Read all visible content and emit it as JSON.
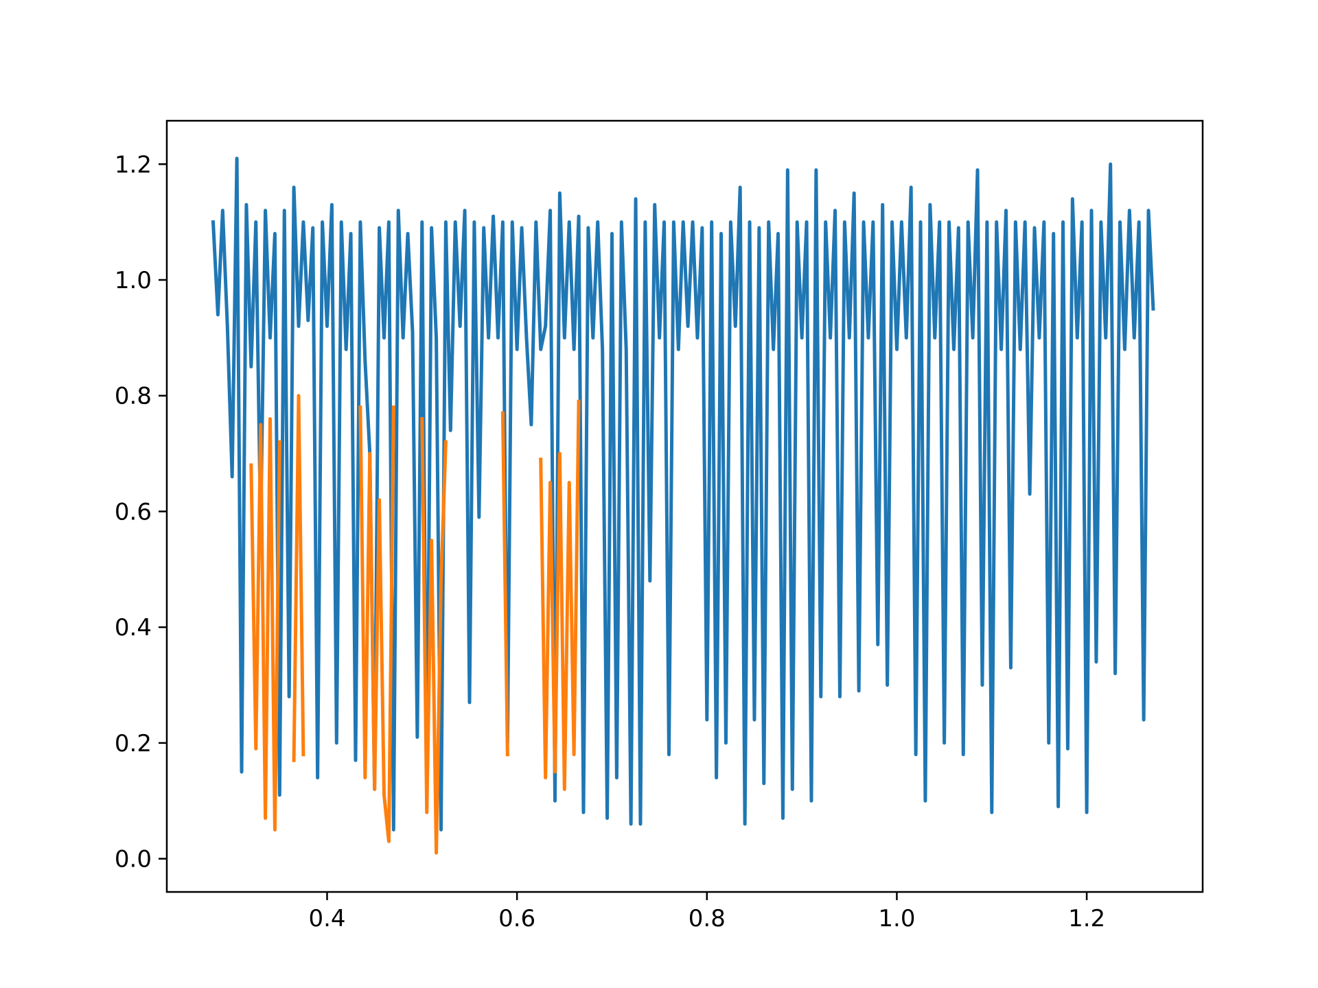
{
  "chart_data": {
    "type": "line",
    "xlim": [
      0.2312,
      1.3221
    ],
    "ylim": [
      -0.0574,
      1.275
    ],
    "xticks": [
      0.4,
      0.6,
      0.8,
      {
        "value": 1.0,
        "label": "1.0"
      },
      1.2
    ],
    "yticks": [
      {
        "value": 0.0,
        "label": "0.0"
      },
      0.2,
      0.4,
      0.6,
      0.8,
      {
        "value": 1.0,
        "label": "1.0"
      },
      1.2
    ],
    "grid": false,
    "series": [
      {
        "color": "#1f77b4",
        "x": [
          0.28,
          0.285,
          0.29,
          0.295,
          0.3,
          0.305,
          0.31,
          0.315,
          0.32,
          0.325,
          0.33,
          0.335,
          0.34,
          0.345,
          0.35,
          0.355,
          0.36,
          0.365,
          0.37,
          0.375,
          0.38,
          0.385,
          0.39,
          0.395,
          0.4,
          0.405,
          0.41,
          0.415,
          0.42,
          0.425,
          0.43,
          0.435,
          0.44,
          0.445,
          0.45,
          0.455,
          0.46,
          0.465,
          0.47,
          0.475,
          0.48,
          0.485,
          0.49,
          0.495,
          0.5,
          0.505,
          0.51,
          0.515,
          0.52,
          0.525,
          0.53,
          0.535,
          0.54,
          0.545,
          0.55,
          0.555,
          0.56,
          0.565,
          0.57,
          0.575,
          0.58,
          0.585,
          0.59,
          0.595,
          0.6,
          0.605,
          0.61,
          0.615,
          0.62,
          0.625,
          0.63,
          0.635,
          0.64,
          0.645,
          0.65,
          0.655,
          0.66,
          0.665,
          0.67,
          0.675,
          0.68,
          0.685,
          0.69,
          0.695,
          0.7,
          0.705,
          0.71,
          0.715,
          0.72,
          0.725,
          0.73,
          0.735,
          0.74,
          0.745,
          0.75,
          0.755,
          0.76,
          0.765,
          0.77,
          0.775,
          0.78,
          0.785,
          0.79,
          0.795,
          0.8,
          0.805,
          0.81,
          0.815,
          0.82,
          0.825,
          0.83,
          0.835,
          0.84,
          0.845,
          0.85,
          0.855,
          0.86,
          0.865,
          0.87,
          0.875,
          0.88,
          0.885,
          0.89,
          0.895,
          0.9,
          0.905,
          0.91,
          0.915,
          0.92,
          0.925,
          0.93,
          0.935,
          0.94,
          0.945,
          0.95,
          0.955,
          0.96,
          0.965,
          0.97,
          0.975,
          0.98,
          0.985,
          0.99,
          0.995,
          1.0,
          1.005,
          1.01,
          1.015,
          1.02,
          1.025,
          1.03,
          1.035,
          1.04,
          1.045,
          1.05,
          1.055,
          1.06,
          1.065,
          1.07,
          1.075,
          1.08,
          1.085,
          1.09,
          1.095,
          1.1,
          1.105,
          1.11,
          1.115,
          1.12,
          1.125,
          1.13,
          1.135,
          1.14,
          1.145,
          1.15,
          1.155,
          1.16,
          1.165,
          1.17,
          1.175,
          1.18,
          1.185,
          1.19,
          1.195,
          1.2,
          1.205,
          1.21,
          1.215,
          1.22,
          1.225,
          1.23,
          1.235,
          1.24,
          1.245,
          1.25,
          1.255,
          1.26,
          1.265,
          1.27
        ],
        "values": [
          1.1,
          0.94,
          1.12,
          0.92,
          0.66,
          1.21,
          0.15,
          1.13,
          0.85,
          1.1,
          0.57,
          1.12,
          0.9,
          1.08,
          0.11,
          1.12,
          0.28,
          1.16,
          0.92,
          1.1,
          0.93,
          1.09,
          0.14,
          1.1,
          0.92,
          1.13,
          0.2,
          1.1,
          0.88,
          1.08,
          0.17,
          1.1,
          0.86,
          0.7,
          0.12,
          1.09,
          0.9,
          1.1,
          0.05,
          1.12,
          0.9,
          1.08,
          0.91,
          0.21,
          1.1,
          0.1,
          1.09,
          0.9,
          0.05,
          1.1,
          0.74,
          1.1,
          0.92,
          1.12,
          0.27,
          1.1,
          0.59,
          1.09,
          0.9,
          1.11,
          0.9,
          1.1,
          0.2,
          1.1,
          0.88,
          1.09,
          0.9,
          0.75,
          1.1,
          0.88,
          0.92,
          1.12,
          0.1,
          1.15,
          0.9,
          1.1,
          0.88,
          1.11,
          0.08,
          1.09,
          0.9,
          1.1,
          0.88,
          0.07,
          1.08,
          0.14,
          1.1,
          0.88,
          0.06,
          1.14,
          0.06,
          1.1,
          0.48,
          1.13,
          0.9,
          1.1,
          0.18,
          1.1,
          0.88,
          1.1,
          0.92,
          1.1,
          0.9,
          1.09,
          0.24,
          1.1,
          0.14,
          1.08,
          0.2,
          1.1,
          0.92,
          1.16,
          0.06,
          1.1,
          0.24,
          1.09,
          0.13,
          1.1,
          0.88,
          1.08,
          0.07,
          1.19,
          0.12,
          1.1,
          0.9,
          1.1,
          0.1,
          1.19,
          0.28,
          1.1,
          0.9,
          1.12,
          0.28,
          1.1,
          0.9,
          1.15,
          0.29,
          1.1,
          0.9,
          1.1,
          0.37,
          1.13,
          0.3,
          1.1,
          0.88,
          1.1,
          0.9,
          1.16,
          0.18,
          1.1,
          0.1,
          1.13,
          0.9,
          1.1,
          0.2,
          1.1,
          0.88,
          1.09,
          0.18,
          1.1,
          0.9,
          1.19,
          0.3,
          1.1,
          0.08,
          1.1,
          0.88,
          1.12,
          0.33,
          1.1,
          0.88,
          1.1,
          0.63,
          1.09,
          0.9,
          1.1,
          0.2,
          1.08,
          0.09,
          1.1,
          0.19,
          1.14,
          0.9,
          1.1,
          0.08,
          1.12,
          0.34,
          1.1,
          0.9,
          1.2,
          0.32,
          1.1,
          0.88,
          1.12,
          0.9,
          1.1,
          0.24,
          1.12,
          0.95
        ]
      },
      {
        "color": "#ff7f0e",
        "x": [
          0.32,
          0.325,
          0.33,
          0.335,
          0.34,
          0.345,
          0.35,
          0.355,
          0.365,
          0.37,
          0.375,
          0.38,
          0.435,
          0.44,
          0.445,
          0.45,
          0.455,
          0.46,
          0.465,
          0.47,
          0.475,
          0.5,
          0.505,
          0.51,
          0.515,
          0.52,
          0.525,
          0.53,
          0.585,
          0.59,
          0.595,
          0.625,
          0.63,
          0.635,
          0.64,
          0.645,
          0.65,
          0.655,
          0.66,
          0.665
        ],
        "values": [
          0.68,
          0.19,
          0.75,
          0.07,
          0.76,
          0.05,
          0.72,
          null,
          0.17,
          0.8,
          0.18,
          null,
          0.78,
          0.14,
          0.7,
          0.12,
          0.62,
          0.11,
          0.03,
          0.78,
          null,
          0.76,
          0.08,
          0.55,
          0.01,
          0.48,
          0.72,
          null,
          0.77,
          0.18,
          null,
          0.69,
          0.14,
          0.65,
          0.15,
          0.7,
          0.12,
          0.65,
          0.18,
          0.79
        ]
      }
    ]
  }
}
